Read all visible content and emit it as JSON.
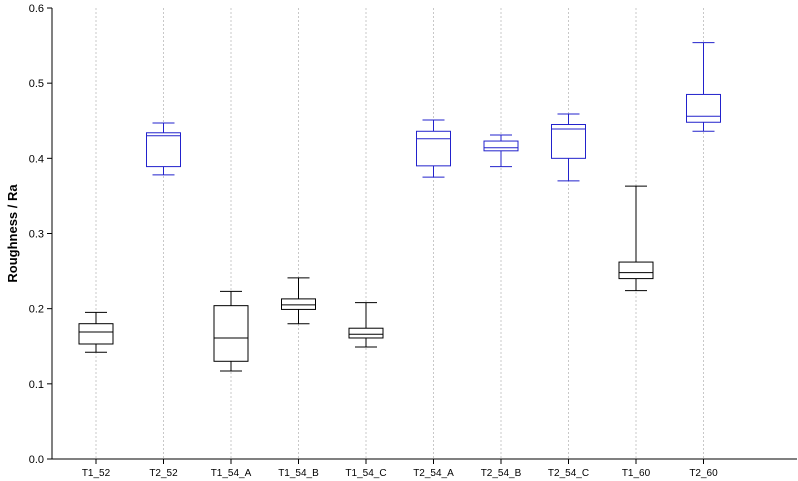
{
  "chart_data": {
    "type": "box",
    "title": "",
    "xlabel": "",
    "ylabel": "Roughness / Ra",
    "ylim": [
      0,
      0.6
    ],
    "yticks": [
      "0.0",
      "0.1",
      "0.2",
      "0.3",
      "0.4",
      "0.5",
      "0.6"
    ],
    "grid": "vertical dotted",
    "categories": [
      "T1_52",
      "T2_52",
      "T1_54_A",
      "T1_54_B",
      "T1_54_C",
      "T2_54_A",
      "T2_54_B",
      "T2_54_C",
      "T1_60",
      "T2_60"
    ],
    "boxes": [
      {
        "label": "T1_52",
        "min": 0.142,
        "q1": 0.153,
        "median": 0.169,
        "q3": 0.18,
        "max": 0.195,
        "color": "#000000"
      },
      {
        "label": "T2_52",
        "min": 0.378,
        "q1": 0.389,
        "median": 0.43,
        "q3": 0.434,
        "max": 0.447,
        "color": "#2222cc"
      },
      {
        "label": "T1_54_A",
        "min": 0.117,
        "q1": 0.13,
        "median": 0.161,
        "q3": 0.204,
        "max": 0.223,
        "color": "#000000"
      },
      {
        "label": "T1_54_B",
        "min": 0.18,
        "q1": 0.199,
        "median": 0.205,
        "q3": 0.213,
        "max": 0.241,
        "color": "#000000"
      },
      {
        "label": "T1_54_C",
        "min": 0.149,
        "q1": 0.161,
        "median": 0.166,
        "q3": 0.174,
        "max": 0.208,
        "color": "#000000"
      },
      {
        "label": "T2_54_A",
        "min": 0.375,
        "q1": 0.39,
        "median": 0.426,
        "q3": 0.436,
        "max": 0.451,
        "color": "#2222cc"
      },
      {
        "label": "T2_54_B",
        "min": 0.389,
        "q1": 0.41,
        "median": 0.414,
        "q3": 0.423,
        "max": 0.431,
        "color": "#2222cc"
      },
      {
        "label": "T2_54_C",
        "min": 0.37,
        "q1": 0.4,
        "median": 0.439,
        "q3": 0.445,
        "max": 0.459,
        "color": "#2222cc"
      },
      {
        "label": "T1_60",
        "min": 0.224,
        "q1": 0.24,
        "median": 0.248,
        "q3": 0.262,
        "max": 0.363,
        "color": "#000000"
      },
      {
        "label": "T2_60",
        "min": 0.436,
        "q1": 0.448,
        "median": 0.456,
        "q3": 0.485,
        "max": 0.554,
        "color": "#2222cc"
      }
    ]
  }
}
